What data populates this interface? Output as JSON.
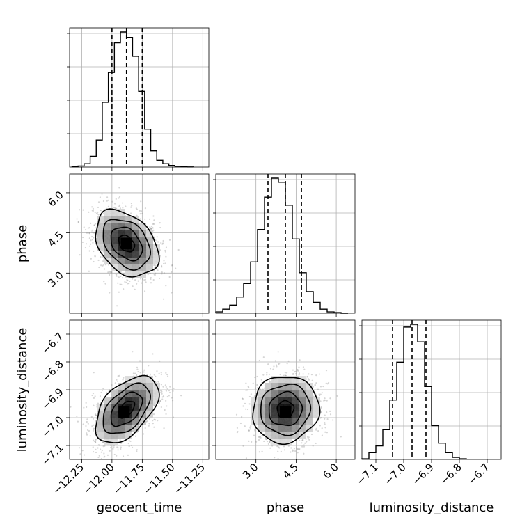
{
  "chart_data": {
    "type": "corner",
    "parameters": [
      "geocent_time",
      "phase",
      "luminosity_distance"
    ],
    "axes": {
      "geocent_time": {
        "label": "geocent_time",
        "range": [
          -12.35,
          -11.2
        ],
        "ticks": [
          -12.25,
          -12.0,
          -11.75,
          -11.5,
          -11.25
        ],
        "tick_labels": [
          "−12.25",
          "−12.00",
          "−11.75",
          "−11.50",
          "−11.25"
        ]
      },
      "phase": {
        "label": "phase",
        "range": [
          1.5,
          6.7
        ],
        "ticks": [
          3.0,
          4.5,
          6.0
        ],
        "tick_labels": [
          "3.0",
          "4.5",
          "6.0"
        ]
      },
      "luminosity_distance": {
        "label": "luminosity_distance",
        "range": [
          -7.15,
          -6.65
        ],
        "ticks": [
          -7.1,
          -7.0,
          -6.9,
          -6.8,
          -6.7
        ],
        "tick_labels": [
          "−7.1",
          "−7.0",
          "−6.9",
          "−6.8",
          "−6.7"
        ]
      }
    },
    "histograms": [
      {
        "param": "geocent_time",
        "bin_edges": [
          -12.33,
          -12.28,
          -12.23,
          -12.18,
          -12.13,
          -12.08,
          -12.03,
          -11.98,
          -11.93,
          -11.88,
          -11.83,
          -11.78,
          -11.73,
          -11.68,
          -11.63,
          -11.58,
          -11.53,
          -11.48,
          -11.43,
          -11.38,
          -11.33
        ],
        "counts": [
          0.2,
          0.8,
          2.5,
          8,
          20,
          48,
          70,
          92,
          100,
          96,
          82,
          56,
          28,
          12,
          5,
          2.5,
          1.2,
          0.6,
          0.3,
          0.1
        ],
        "quantiles": [
          -12.0,
          -11.88,
          -11.75
        ]
      },
      {
        "param": "phase",
        "bin_edges": [
          1.5,
          1.76,
          2.02,
          2.28,
          2.54,
          2.8,
          3.06,
          3.32,
          3.58,
          3.84,
          4.1,
          4.36,
          4.62,
          4.88,
          5.14,
          5.4,
          5.66,
          5.92,
          6.18,
          6.44
        ],
        "counts": [
          1,
          3,
          6,
          12,
          22,
          38,
          62,
          86,
          100,
          97,
          80,
          55,
          30,
          16,
          8,
          3,
          1,
          0.5,
          0
        ],
        "quantiles": [
          3.45,
          4.1,
          4.7
        ]
      },
      {
        "param": "luminosity_distance",
        "bin_edges": [
          -7.15,
          -7.125,
          -7.1,
          -7.075,
          -7.05,
          -7.025,
          -7.0,
          -6.975,
          -6.95,
          -6.925,
          -6.9,
          -6.875,
          -6.85,
          -6.825,
          -6.8,
          -6.775
        ],
        "counts": [
          0.5,
          5,
          10,
          22,
          44,
          72,
          98,
          100,
          87,
          54,
          25,
          12,
          5,
          1.5,
          0.5
        ],
        "quantiles": [
          -7.04,
          -6.97,
          -6.92
        ]
      }
    ],
    "scatter_2d": [
      {
        "x": "geocent_time",
        "y": "phase",
        "center": [
          -11.88,
          4.1
        ],
        "std": [
          0.13,
          0.62
        ],
        "correlation": -0.35,
        "mode": [
          -11.88,
          4.1
        ]
      },
      {
        "x": "geocent_time",
        "y": "luminosity_distance",
        "center": [
          -11.88,
          -6.97
        ],
        "std": [
          0.13,
          0.06
        ],
        "correlation": 0.5,
        "mode": [
          -11.9,
          -6.98
        ]
      },
      {
        "x": "phase",
        "y": "luminosity_distance",
        "center": [
          4.1,
          -6.97
        ],
        "std": [
          0.62,
          0.06
        ],
        "correlation": 0.05,
        "mode": [
          4.1,
          -6.98
        ]
      }
    ],
    "contour_levels_sigma": [
      0.5,
      1.0,
      1.5,
      2.0
    ],
    "grid": true,
    "quantiles_shown": [
      0.16,
      0.5,
      0.84
    ]
  }
}
